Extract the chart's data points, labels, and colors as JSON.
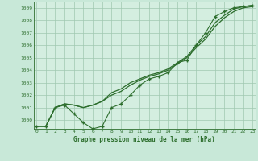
{
  "title": "Graphe pression niveau de la mer (hPa)",
  "background_color": "#c8e8d8",
  "plot_bg_color": "#d4eee0",
  "grid_color": "#a0c8b0",
  "line_color": "#2d6e2d",
  "x_ticks": [
    0,
    1,
    2,
    3,
    4,
    5,
    6,
    7,
    8,
    9,
    10,
    11,
    12,
    13,
    14,
    15,
    16,
    17,
    18,
    19,
    20,
    21,
    22,
    23
  ],
  "ylim": [
    999.3,
    1009.5
  ],
  "xlim": [
    -0.3,
    23.3
  ],
  "yticks": [
    1000,
    1001,
    1002,
    1003,
    1004,
    1005,
    1006,
    1007,
    1008,
    1009
  ],
  "line_smooth1": [
    999.5,
    999.5,
    1001.0,
    1001.3,
    1001.2,
    1001.0,
    1001.2,
    1001.5,
    1002.0,
    1002.3,
    1002.8,
    1003.2,
    1003.5,
    1003.7,
    1004.0,
    1004.5,
    1005.0,
    1005.8,
    1006.5,
    1007.5,
    1008.2,
    1008.7,
    1009.0,
    1009.1
  ],
  "line_smooth2": [
    999.5,
    999.5,
    1001.0,
    1001.3,
    1001.2,
    1001.0,
    1001.2,
    1001.5,
    1002.2,
    1002.5,
    1003.0,
    1003.3,
    1003.6,
    1003.8,
    1004.1,
    1004.6,
    1005.1,
    1006.0,
    1006.7,
    1007.8,
    1008.4,
    1008.9,
    1009.1,
    1009.2
  ],
  "line_zigzag": [
    999.5,
    999.5,
    1001.0,
    1001.2,
    1000.5,
    999.8,
    999.3,
    999.5,
    1001.0,
    1001.3,
    1002.0,
    1002.8,
    1003.3,
    1003.5,
    1003.8,
    1004.6,
    1004.8,
    1006.0,
    1007.0,
    1008.3,
    1008.7,
    1009.0,
    1009.1,
    1009.2
  ]
}
